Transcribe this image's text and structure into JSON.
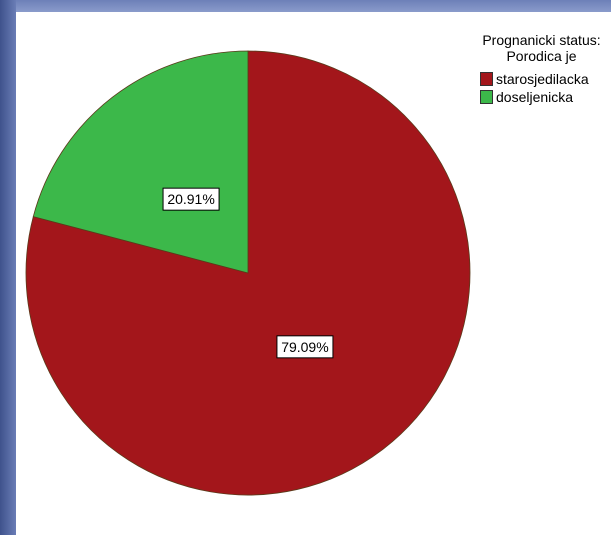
{
  "chart_data": {
    "type": "pie",
    "legend_title_line1": "Prognanicki status:",
    "legend_title_line2": "Porodica je",
    "legend_position": "top-right",
    "start_angle_deg": 0,
    "direction": "clockwise",
    "slices": [
      {
        "label": "starosjedilacka",
        "value": 79.09,
        "display": "79.09%",
        "color": "#a3161b"
      },
      {
        "label": "doseljenicka",
        "value": 20.91,
        "display": "20.91%",
        "color": "#3cb84a"
      }
    ]
  }
}
